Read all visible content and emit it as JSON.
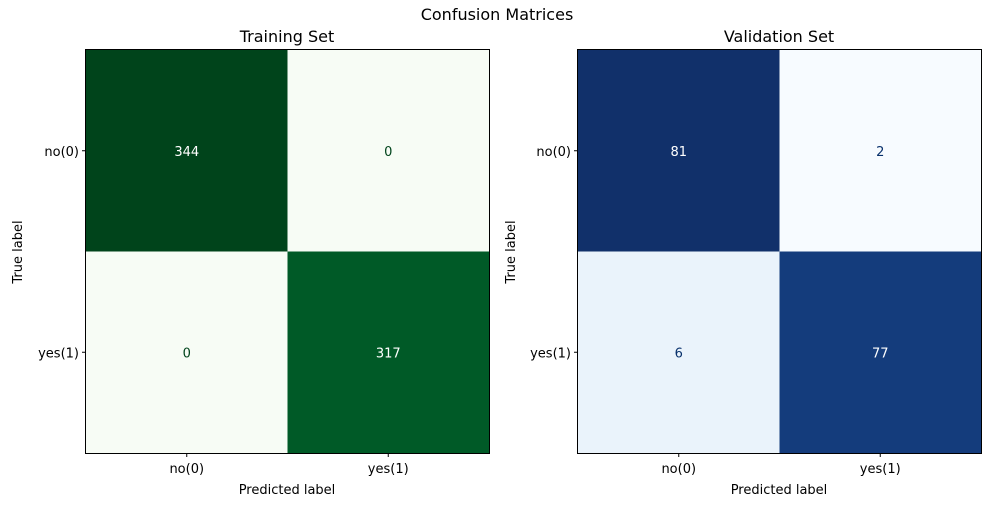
{
  "figure_title": "Confusion Matrices",
  "chart_data": [
    {
      "type": "heatmap",
      "title": "Training Set",
      "xlabel": "Predicted label",
      "ylabel": "True label",
      "x_categories": [
        "no(0)",
        "yes(1)"
      ],
      "y_categories": [
        "no(0)",
        "yes(1)"
      ],
      "values": [
        [
          344,
          0
        ],
        [
          0,
          317
        ]
      ],
      "colormap": "Greens",
      "colors": {
        "cells": [
          [
            "#00441b",
            "#f7fcf5"
          ],
          [
            "#f7fcf5",
            "#005a27"
          ]
        ],
        "text": [
          [
            "#ffffff",
            "#00441b"
          ],
          [
            "#00441b",
            "#ffffff"
          ]
        ]
      }
    },
    {
      "type": "heatmap",
      "title": "Validation Set",
      "xlabel": "Predicted label",
      "ylabel": "True label",
      "x_categories": [
        "no(0)",
        "yes(1)"
      ],
      "y_categories": [
        "no(0)",
        "yes(1)"
      ],
      "values": [
        [
          81,
          2
        ],
        [
          6,
          77
        ]
      ],
      "colormap": "Blues",
      "colors": {
        "cells": [
          [
            "#11306a",
            "#f7fbff"
          ],
          [
            "#eaf3fb",
            "#143c7c"
          ]
        ],
        "text": [
          [
            "#ffffff",
            "#08306b"
          ],
          [
            "#08306b",
            "#ffffff"
          ]
        ]
      }
    }
  ]
}
